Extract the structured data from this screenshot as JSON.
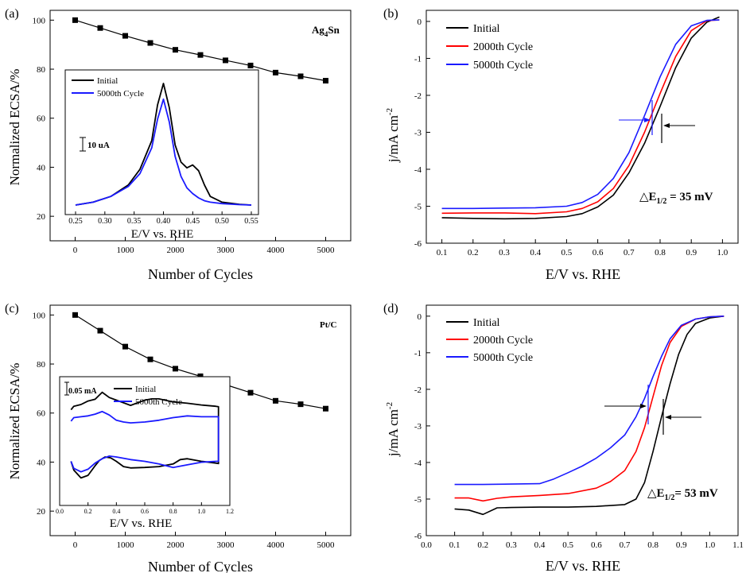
{
  "colors": {
    "initial": "#000000",
    "cycle2000": "#ff0000",
    "cycle5000": "#1a1aff"
  },
  "chart_data": [
    {
      "type": "line",
      "panel": "(a)",
      "sample": "Ag4Sn",
      "xlabel": "Number of Cycles",
      "ylabel": "Normalized ECSA/%",
      "xlim": [
        -500,
        5500
      ],
      "ylim": [
        10,
        104
      ],
      "x_ticks": [
        "0",
        "1000",
        "2000",
        "3000",
        "4000",
        "5000"
      ],
      "y_ticks": [
        "20",
        "40",
        "60",
        "80",
        "100"
      ],
      "series": [
        {
          "x": [
            0,
            500,
            1000,
            1500,
            2000,
            2500,
            3000,
            3500,
            4000,
            4500,
            5000
          ],
          "values": [
            100,
            96.8,
            93.6,
            90.7,
            87.9,
            85.8,
            83.6,
            81.5,
            78.6,
            77.1,
            75.3
          ]
        }
      ],
      "inset": {
        "xlabel": "E/V vs. RHE",
        "x_ticks": [
          "0.25",
          "0.30",
          "0.35",
          "0.40",
          "0.45",
          "0.50",
          "0.55"
        ],
        "xlim": [
          0.24,
          0.56
        ],
        "scale_bar": "10 uA",
        "series": [
          {
            "name": "Initial",
            "color": "#000000",
            "x": [
              0.25,
              0.28,
              0.31,
              0.34,
              0.36,
              0.38,
              0.39,
              0.4,
              0.41,
              0.42,
              0.43,
              0.44,
              0.45,
              0.46,
              0.47,
              0.48,
              0.5,
              0.53,
              0.55
            ],
            "values": [
              0,
              2,
              6,
              14,
              25,
              45,
              70,
              85,
              68,
              42,
              30,
              26,
              28,
              24,
              14,
              6,
              2,
              0.5,
              0
            ]
          },
          {
            "name": "5000th Cycle",
            "color": "#1a1aff",
            "x": [
              0.25,
              0.28,
              0.31,
              0.34,
              0.36,
              0.38,
              0.39,
              0.4,
              0.41,
              0.42,
              0.43,
              0.44,
              0.45,
              0.46,
              0.47,
              0.48,
              0.5,
              0.53,
              0.55
            ],
            "values": [
              0,
              2,
              6,
              13,
              22,
              40,
              60,
              74,
              58,
              34,
              20,
              12,
              8,
              5,
              3,
              2,
              1,
              0.3,
              0
            ]
          }
        ]
      }
    },
    {
      "type": "line",
      "panel": "(b)",
      "xlabel": "E/V vs. RHE",
      "ylabel": "j/mA cm-2",
      "xlim": [
        0.05,
        1.05
      ],
      "ylim": [
        -6,
        0.3
      ],
      "x_ticks": [
        "0.1",
        "0.2",
        "0.3",
        "0.4",
        "0.5",
        "0.6",
        "0.7",
        "0.8",
        "0.9",
        "1.0"
      ],
      "y_ticks": [
        "0",
        "-1",
        "-2",
        "-3",
        "-4",
        "-5",
        "-6"
      ],
      "annotation": "△E1/2 = 35 mV",
      "series": [
        {
          "name": "Initial",
          "x": [
            0.1,
            0.2,
            0.3,
            0.4,
            0.5,
            0.55,
            0.6,
            0.65,
            0.7,
            0.75,
            0.8,
            0.85,
            0.9,
            0.95,
            0.99
          ],
          "values": [
            -5.31,
            -5.33,
            -5.34,
            -5.33,
            -5.28,
            -5.2,
            -5.02,
            -4.7,
            -4.1,
            -3.3,
            -2.3,
            -1.25,
            -0.45,
            -0.02,
            0.12
          ]
        },
        {
          "name": "2000th Cycle",
          "x": [
            0.1,
            0.2,
            0.3,
            0.4,
            0.5,
            0.55,
            0.6,
            0.65,
            0.7,
            0.75,
            0.8,
            0.85,
            0.9,
            0.95,
            0.99
          ],
          "values": [
            -5.19,
            -5.18,
            -5.18,
            -5.2,
            -5.15,
            -5.06,
            -4.88,
            -4.52,
            -3.9,
            -3.0,
            -1.95,
            -0.95,
            -0.25,
            0.02,
            0.04
          ]
        },
        {
          "name": "5000th Cycle",
          "x": [
            0.1,
            0.2,
            0.3,
            0.4,
            0.5,
            0.55,
            0.6,
            0.65,
            0.7,
            0.75,
            0.8,
            0.85,
            0.9,
            0.95,
            0.99
          ],
          "values": [
            -5.06,
            -5.06,
            -5.05,
            -5.04,
            -5.0,
            -4.9,
            -4.68,
            -4.25,
            -3.55,
            -2.55,
            -1.5,
            -0.62,
            -0.12,
            0.03,
            0.04
          ]
        }
      ]
    },
    {
      "type": "line",
      "panel": "(c)",
      "sample": "Pt/C",
      "xlabel": "Number of Cycles",
      "ylabel": "Normalized ECSA/%",
      "xlim": [
        -500,
        5500
      ],
      "ylim": [
        10,
        104
      ],
      "x_ticks": [
        "0",
        "1000",
        "2000",
        "3000",
        "4000",
        "5000"
      ],
      "y_ticks": [
        "20",
        "40",
        "60",
        "80",
        "100"
      ],
      "series": [
        {
          "x": [
            0,
            500,
            1000,
            1500,
            2000,
            2500,
            3000,
            3500,
            4000,
            4500,
            5000
          ],
          "values": [
            100,
            93.6,
            87.1,
            81.9,
            78.1,
            75.0,
            71.6,
            68.3,
            65.0,
            63.6,
            61.8
          ]
        }
      ],
      "inset": {
        "xlabel": "E/V vs. RHE",
        "x_ticks": [
          "0.0",
          "0.2",
          "0.4",
          "0.6",
          "0.8",
          "1.0",
          "1.2"
        ],
        "xlim": [
          0.0,
          1.2
        ],
        "scale_bar": "0.05 mA",
        "series": [
          {
            "name": "Initial",
            "color": "#000000",
            "x": [
              0.08,
              0.1,
              0.15,
              0.2,
              0.25,
              0.28,
              0.32,
              0.36,
              0.4,
              0.45,
              0.5,
              0.6,
              0.7,
              0.8,
              0.85,
              0.9,
              1.0,
              1.1,
              1.12,
              1.12,
              1.1,
              1.0,
              0.9,
              0.8,
              0.7,
              0.65,
              0.6,
              0.5,
              0.4,
              0.35,
              0.3,
              0.25,
              0.2,
              0.15,
              0.1,
              0.08
            ],
            "values": [
              -30,
              -50,
              -68,
              -62,
              -40,
              -28,
              -20,
              -22,
              -30,
              -42,
              -45,
              -44,
              -42,
              -36,
              -26,
              -24,
              -30,
              -34,
              -35,
              95,
              96,
              99,
              103,
              106,
              113,
              113,
              110,
              98,
              110,
              116,
              128,
              112,
              108,
              100,
              96,
              88
            ]
          },
          {
            "name": "5000th Cycle",
            "color": "#1a1aff",
            "x": [
              0.08,
              0.1,
              0.15,
              0.2,
              0.25,
              0.3,
              0.35,
              0.4,
              0.5,
              0.6,
              0.7,
              0.8,
              0.9,
              1.0,
              1.1,
              1.12,
              1.12,
              1.1,
              1.0,
              0.9,
              0.8,
              0.7,
              0.6,
              0.5,
              0.45,
              0.4,
              0.35,
              0.3,
              0.25,
              0.2,
              0.15,
              0.1,
              0.08
            ],
            "values": [
              -30,
              -46,
              -54,
              -48,
              -34,
              -24,
              -18,
              -20,
              -26,
              -30,
              -36,
              -44,
              -38,
              -32,
              -30,
              -30,
              72,
              72,
              72,
              74,
              70,
              64,
              60,
              58,
              60,
              64,
              76,
              84,
              78,
              74,
              72,
              70,
              62
            ]
          }
        ]
      }
    },
    {
      "type": "line",
      "panel": "(d)",
      "xlabel": "E/V vs. RHE",
      "ylabel": "j/mA cm-2",
      "xlim": [
        0.0,
        1.1
      ],
      "ylim": [
        -6,
        0.3
      ],
      "x_ticks": [
        "0.0",
        "0.1",
        "0.2",
        "0.3",
        "0.4",
        "0.5",
        "0.6",
        "0.7",
        "0.8",
        "0.9",
        "1.0",
        "1.1"
      ],
      "y_ticks": [
        "0",
        "-1",
        "-2",
        "-3",
        "-4",
        "-5",
        "-6"
      ],
      "annotation": "△E1/2= 53 mV",
      "series": [
        {
          "name": "Initial",
          "x": [
            0.1,
            0.15,
            0.2,
            0.25,
            0.3,
            0.4,
            0.5,
            0.6,
            0.7,
            0.74,
            0.77,
            0.8,
            0.83,
            0.86,
            0.89,
            0.92,
            0.95,
            1.0,
            1.05
          ],
          "values": [
            -5.27,
            -5.3,
            -5.42,
            -5.24,
            -5.23,
            -5.22,
            -5.22,
            -5.2,
            -5.15,
            -5.0,
            -4.55,
            -3.7,
            -2.75,
            -1.85,
            -1.05,
            -0.5,
            -0.2,
            -0.05,
            0.0
          ]
        },
        {
          "name": "2000th Cycle",
          "x": [
            0.1,
            0.15,
            0.2,
            0.25,
            0.3,
            0.4,
            0.5,
            0.6,
            0.65,
            0.7,
            0.74,
            0.77,
            0.8,
            0.83,
            0.86,
            0.9,
            0.95,
            1.0,
            1.05
          ],
          "values": [
            -4.97,
            -4.97,
            -5.05,
            -4.98,
            -4.94,
            -4.9,
            -4.85,
            -4.7,
            -4.52,
            -4.22,
            -3.7,
            -3.05,
            -2.2,
            -1.35,
            -0.72,
            -0.28,
            -0.08,
            -0.02,
            0.0
          ]
        },
        {
          "name": "5000th Cycle",
          "x": [
            0.1,
            0.2,
            0.3,
            0.4,
            0.45,
            0.5,
            0.55,
            0.6,
            0.65,
            0.7,
            0.74,
            0.77,
            0.8,
            0.83,
            0.86,
            0.9,
            0.95,
            1.0,
            1.05
          ],
          "values": [
            -4.6,
            -4.6,
            -4.59,
            -4.58,
            -4.45,
            -4.28,
            -4.1,
            -3.88,
            -3.6,
            -3.25,
            -2.75,
            -2.25,
            -1.65,
            -1.1,
            -0.62,
            -0.25,
            -0.08,
            -0.02,
            0.0
          ]
        }
      ]
    }
  ],
  "labels": {
    "a": {
      "panel": "(a)",
      "sample_main": "Ag",
      "sample_sub": "4",
      "sample_tail": "Sn",
      "ylabel": "Normalized ECSA/%",
      "xlabel": "Number of Cycles",
      "inset_xlabel": "E/V vs. RHE",
      "inset_scale": "10 uA",
      "legend": [
        "Initial",
        "5000th Cycle"
      ]
    },
    "b": {
      "panel": "(b)",
      "ylabel_main": "j/mA cm",
      "ylabel_sup": "-2",
      "xlabel": "E/V vs. RHE",
      "legend": [
        "Initial",
        "2000th Cycle",
        "5000th Cycle"
      ],
      "delta": "△E",
      "delta_sub": "1/2",
      "delta_tail": " = 35 mV"
    },
    "c": {
      "panel": "(c)",
      "sample": "Pt/C",
      "ylabel": "Normalized ECSA/%",
      "xlabel": "Number of Cycles",
      "inset_xlabel": "E/V vs. RHE",
      "inset_scale": "0.05 mA",
      "legend": [
        "Initial",
        "5000th Cycle"
      ]
    },
    "d": {
      "panel": "(d)",
      "ylabel_main": "j/mA cm",
      "ylabel_sup": "-2",
      "xlabel": "E/V vs. RHE",
      "legend": [
        "Initial",
        "2000th Cycle",
        "5000th Cycle"
      ],
      "delta": "△E",
      "delta_sub": "1/2",
      "delta_tail": "= 53 mV"
    }
  }
}
